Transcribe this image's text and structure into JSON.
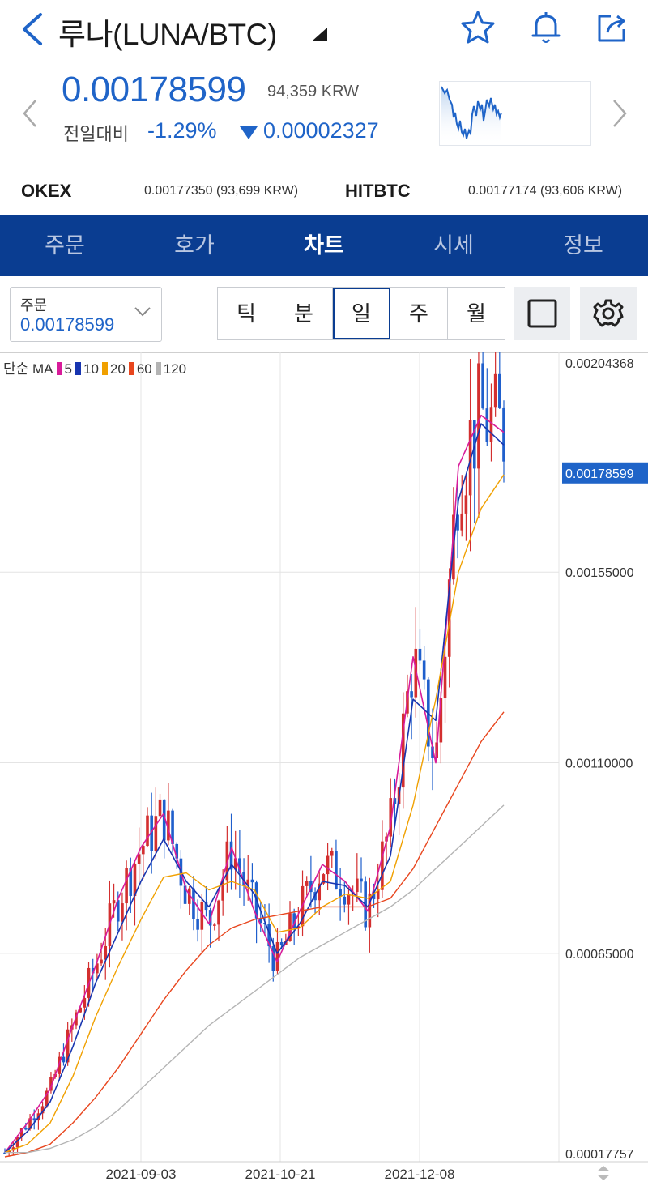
{
  "header": {
    "title": "루나(LUNA/BTC)",
    "icons": [
      "back-arrow-icon",
      "dropdown-caret-icon",
      "star-icon",
      "bell-icon",
      "share-icon"
    ]
  },
  "price": {
    "current": "0.00178599",
    "krw": "94,359 KRW",
    "compare_label": "전일대비",
    "change_pct": "-1.29%",
    "change_abs": "0.00002327",
    "down_color": "#1f64c8"
  },
  "exchanges": [
    {
      "name": "OKEX",
      "value": "0.00177350 (93,699 KRW)"
    },
    {
      "name": "HITBTC",
      "value": "0.00177174 (93,606 KRW)"
    }
  ],
  "tabs": [
    {
      "label": "주문"
    },
    {
      "label": "호가"
    },
    {
      "label": "차트",
      "active": true
    },
    {
      "label": "시세"
    },
    {
      "label": "정보"
    }
  ],
  "order": {
    "label": "주문",
    "value": "0.00178599"
  },
  "periods": [
    {
      "label": "틱"
    },
    {
      "label": "분"
    },
    {
      "label": "일",
      "selected": true
    },
    {
      "label": "주"
    },
    {
      "label": "월"
    }
  ],
  "legend": {
    "prefix": "단순 MA",
    "items": [
      {
        "label": "5",
        "color": "#d81b9a"
      },
      {
        "label": "10",
        "color": "#1835b0"
      },
      {
        "label": "20",
        "color": "#f0a000"
      },
      {
        "label": "60",
        "color": "#e8461e"
      },
      {
        "label": "120",
        "color": "#b4b4b4"
      }
    ]
  },
  "chart_data": {
    "type": "candlestick",
    "y_ticks": [
      "0.00204368",
      "0.00155000",
      "0.00110000",
      "0.00065000",
      "0.00017757"
    ],
    "current_label": "0.00178599",
    "x_ticks": [
      "2021-09-03",
      "2021-10-21",
      "2021-12-08"
    ],
    "grid": true,
    "up_color": "#d32f2f",
    "down_color": "#1f5fcc",
    "series": [
      {
        "name": "5",
        "values": [
          0.00018,
          0.00025,
          0.00033,
          0.00048,
          0.00062,
          0.00078,
          0.0009,
          0.00098,
          0.0008,
          0.00072,
          0.0009,
          0.00075,
          0.00063,
          0.00075,
          0.00086,
          0.00082,
          0.00075,
          0.00095,
          0.00135,
          0.0011,
          0.0018,
          0.00192,
          0.00188
        ]
      },
      {
        "name": "10",
        "values": [
          0.00018,
          0.00023,
          0.0003,
          0.00043,
          0.00058,
          0.0007,
          0.00082,
          0.00092,
          0.00082,
          0.00076,
          0.00086,
          0.00079,
          0.00065,
          0.00072,
          0.00082,
          0.00081,
          0.00076,
          0.00088,
          0.00125,
          0.0012,
          0.00172,
          0.0019,
          0.00185
        ]
      },
      {
        "name": "20",
        "values": [
          0.00018,
          0.0002,
          0.00025,
          0.00036,
          0.0005,
          0.00062,
          0.00073,
          0.00083,
          0.00084,
          0.0008,
          0.00082,
          0.0008,
          0.0007,
          0.00071,
          0.00076,
          0.00079,
          0.00078,
          0.00082,
          0.001,
          0.00125,
          0.00155,
          0.0017,
          0.00178
        ]
      },
      {
        "name": "60",
        "values": [
          0.00017,
          0.00018,
          0.0002,
          0.00025,
          0.00031,
          0.00038,
          0.00046,
          0.00054,
          0.00061,
          0.00067,
          0.00071,
          0.00073,
          0.00074,
          0.00075,
          0.00076,
          0.00076,
          0.00076,
          0.00078,
          0.00085,
          0.00095,
          0.00105,
          0.00115,
          0.00122
        ]
      },
      {
        "name": "120",
        "values": [
          0.00018,
          0.00018,
          0.00019,
          0.00021,
          0.00024,
          0.00028,
          0.00033,
          0.00038,
          0.00043,
          0.00048,
          0.00052,
          0.00056,
          0.0006,
          0.00064,
          0.00067,
          0.0007,
          0.00073,
          0.00076,
          0.0008,
          0.00085,
          0.0009,
          0.00095,
          0.001
        ]
      }
    ]
  }
}
